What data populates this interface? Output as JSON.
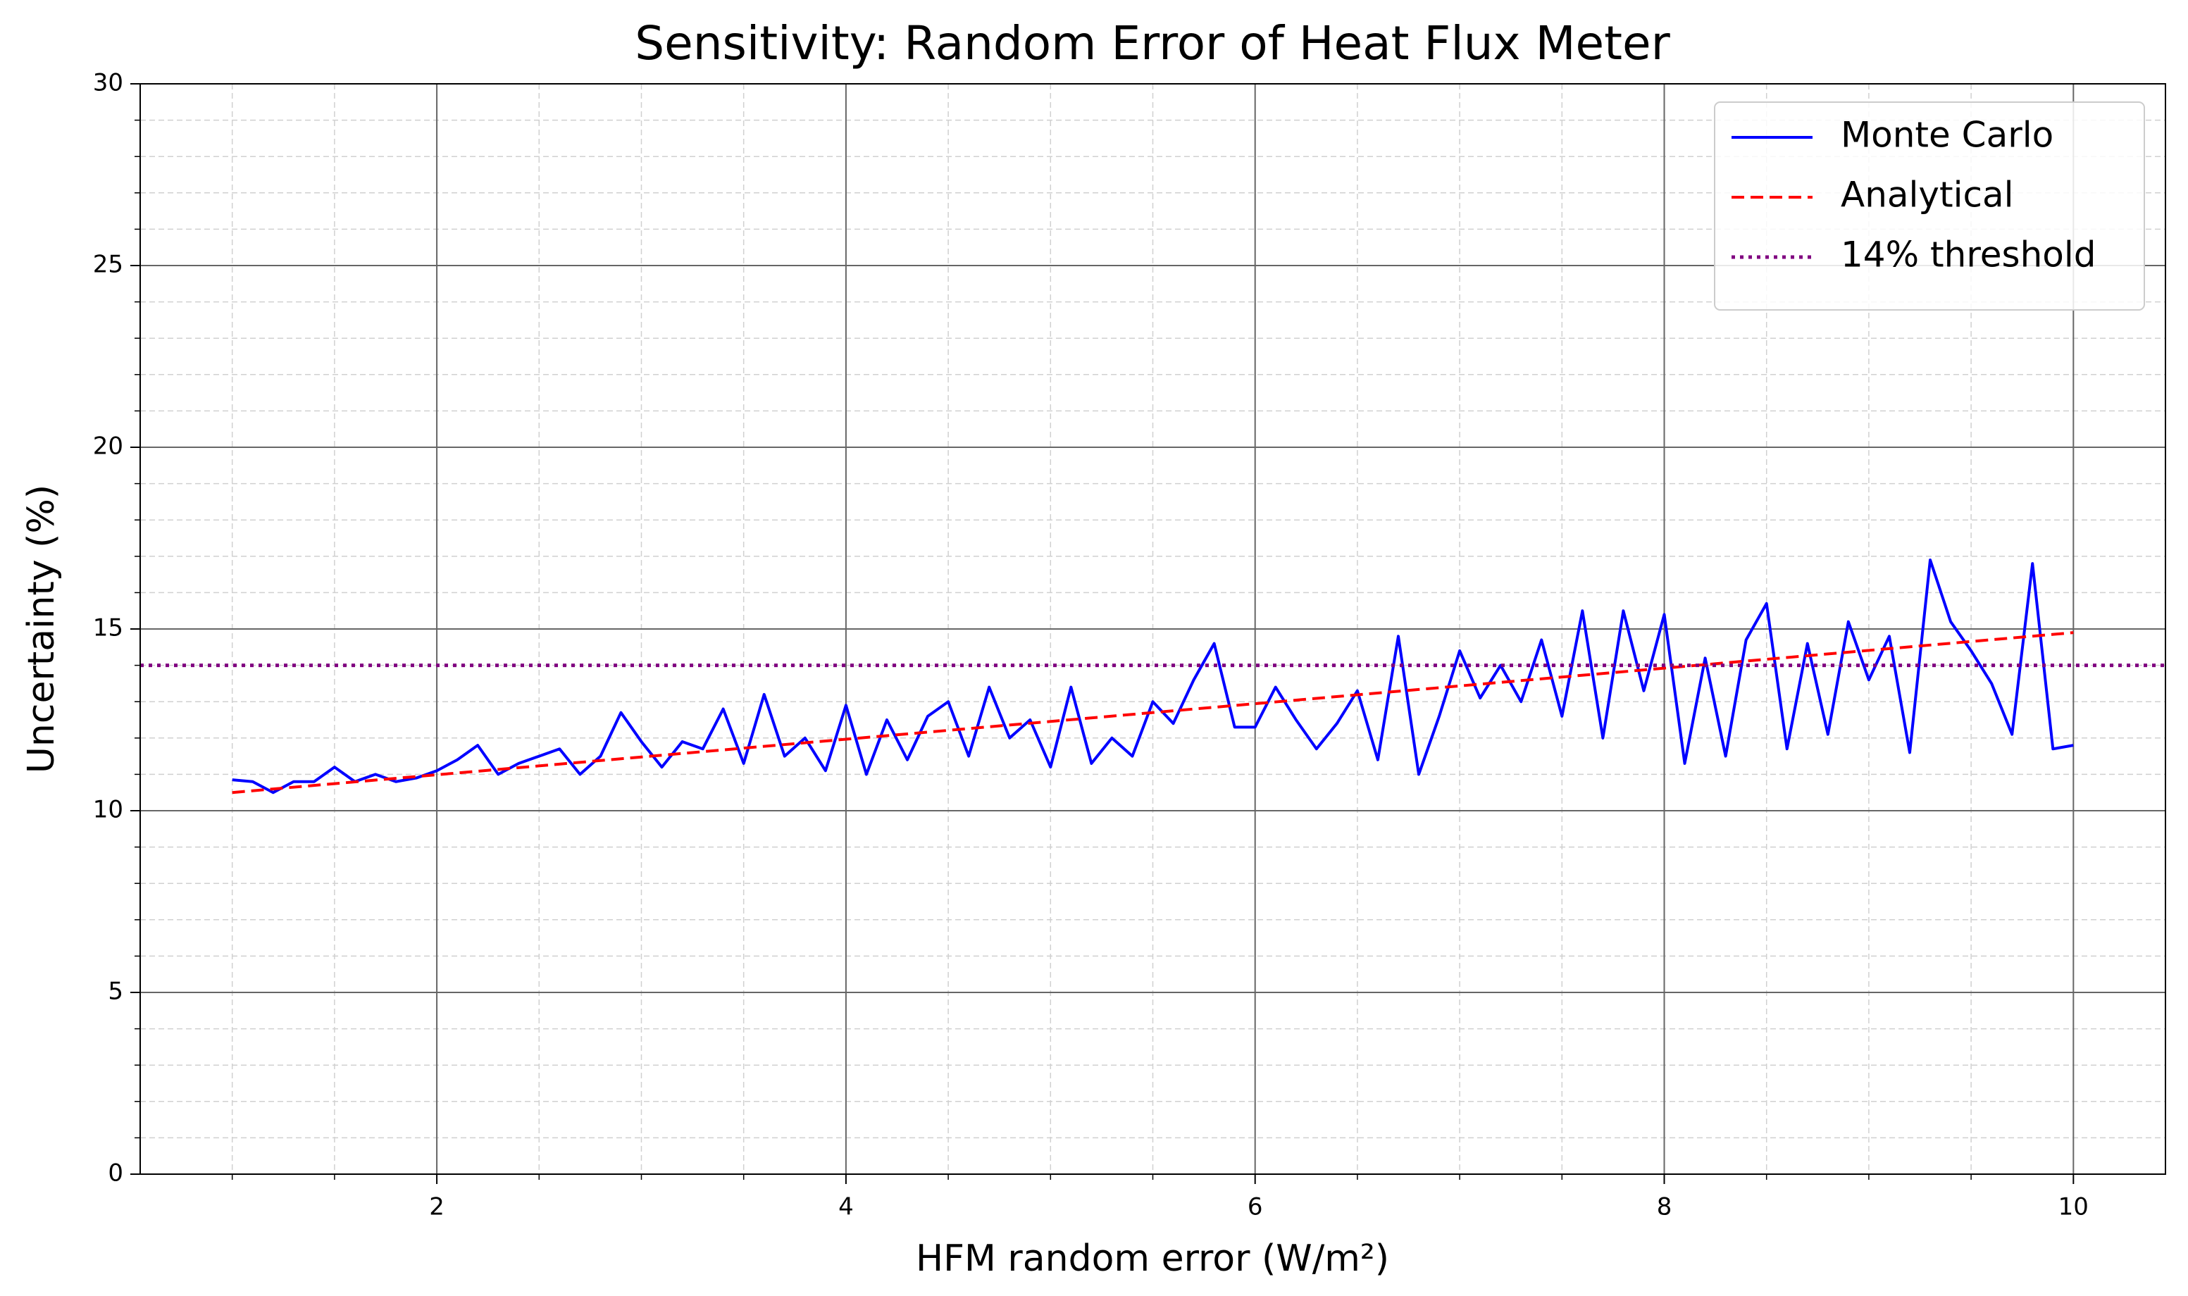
{
  "chart_data": {
    "type": "line",
    "title": "Sensitivity: Random Error of Heat Flux Meter",
    "xlabel": "HFM random error (W/m²)",
    "ylabel": "Uncertainty (%)",
    "xlim": [
      0.55,
      10.45
    ],
    "ylim": [
      0,
      30
    ],
    "xticks": [
      2,
      4,
      6,
      8,
      10
    ],
    "yticks": [
      0,
      5,
      10,
      15,
      20,
      25,
      30
    ],
    "xminor_ticks": [
      1,
      1.5,
      2.5,
      3,
      3.5,
      4.5,
      5,
      5.5,
      6.5,
      7,
      7.5,
      8.5,
      9,
      9.5
    ],
    "yminor_ticks": [
      1,
      2,
      3,
      4,
      6,
      7,
      8,
      9,
      11,
      12,
      13,
      14,
      16,
      17,
      18,
      19,
      21,
      22,
      23,
      24,
      26,
      27,
      28,
      29
    ],
    "grid": true,
    "legend": "upper right",
    "series": [
      {
        "name": "Monte Carlo",
        "color": "#0000ff",
        "style": "solid",
        "x": [
          1.0,
          1.1,
          1.2,
          1.3,
          1.4,
          1.5,
          1.6,
          1.7,
          1.8,
          1.9,
          2.0,
          2.1,
          2.2,
          2.3,
          2.4,
          2.5,
          2.6,
          2.7,
          2.8,
          2.9,
          3.0,
          3.1,
          3.2,
          3.3,
          3.4,
          3.5,
          3.6,
          3.7,
          3.8,
          3.9,
          4.0,
          4.1,
          4.2,
          4.3,
          4.4,
          4.5,
          4.6,
          4.7,
          4.8,
          4.9,
          5.0,
          5.1,
          5.2,
          5.3,
          5.4,
          5.5,
          5.6,
          5.7,
          5.8,
          5.9,
          6.0,
          6.1,
          6.2,
          6.3,
          6.4,
          6.5,
          6.6,
          6.7,
          6.8,
          6.9,
          7.0,
          7.1,
          7.2,
          7.3,
          7.4,
          7.5,
          7.6,
          7.7,
          7.8,
          7.9,
          8.0,
          8.1,
          8.2,
          8.3,
          8.4,
          8.5,
          8.6,
          8.7,
          8.8,
          8.9,
          9.0,
          9.1,
          9.2,
          9.3,
          9.4,
          9.5,
          9.6,
          9.7,
          9.8,
          9.9,
          10.0
        ],
        "values": [
          10.85,
          10.8,
          10.5,
          10.8,
          10.8,
          11.2,
          10.8,
          11.0,
          10.8,
          10.9,
          11.1,
          11.4,
          11.8,
          11.0,
          11.3,
          11.5,
          11.7,
          11.0,
          11.5,
          12.7,
          11.9,
          11.2,
          11.9,
          11.7,
          12.8,
          11.3,
          13.2,
          11.5,
          12.0,
          11.1,
          12.9,
          11.0,
          12.5,
          11.4,
          12.6,
          13.0,
          11.5,
          13.4,
          12.0,
          12.5,
          11.2,
          13.4,
          11.3,
          12.0,
          11.5,
          13.0,
          12.4,
          13.6,
          14.6,
          12.3,
          12.3,
          13.4,
          12.5,
          11.7,
          12.4,
          13.3,
          11.4,
          14.8,
          11.0,
          12.6,
          14.4,
          13.1,
          14.0,
          13.0,
          14.7,
          12.6,
          15.5,
          12.0,
          15.5,
          13.3,
          15.4,
          11.3,
          14.2,
          11.5,
          14.7,
          15.7,
          11.7,
          14.6,
          12.1,
          15.2,
          13.6,
          14.8,
          11.6,
          16.9,
          15.2,
          14.4,
          13.5,
          12.1,
          16.8,
          11.7,
          11.8
        ]
      },
      {
        "name": "Analytical",
        "color": "#ff0000",
        "style": "dashed",
        "x": [
          1,
          10
        ],
        "values": [
          10.5,
          14.9
        ]
      }
    ],
    "hlines": [
      {
        "name": "14% threshold",
        "color": "#800080",
        "style": "dotted",
        "value": 14
      }
    ]
  }
}
